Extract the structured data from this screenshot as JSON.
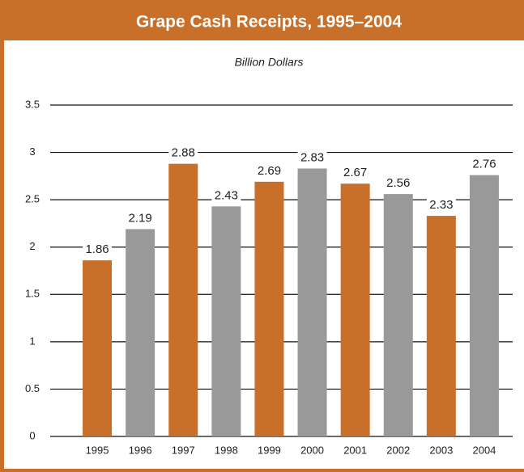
{
  "chart_data": {
    "type": "bar",
    "title": "Grape Cash Receipts, 1995–2004",
    "subtitle": "Billion Dollars",
    "categories": [
      "1995",
      "1996",
      "1997",
      "1998",
      "1999",
      "2000",
      "2001",
      "2002",
      "2003",
      "2004"
    ],
    "values": [
      1.86,
      2.19,
      2.88,
      2.43,
      2.69,
      2.83,
      2.67,
      2.56,
      2.33,
      2.76
    ],
    "colors": [
      "#c8702a",
      "#999999",
      "#c8702a",
      "#999999",
      "#c8702a",
      "#999999",
      "#c8702a",
      "#999999",
      "#c8702a",
      "#999999"
    ],
    "ylim": [
      0,
      3.5
    ],
    "yticks": [
      0,
      0.5,
      1,
      1.5,
      2,
      2.5,
      3,
      3.5
    ],
    "grid": true
  }
}
